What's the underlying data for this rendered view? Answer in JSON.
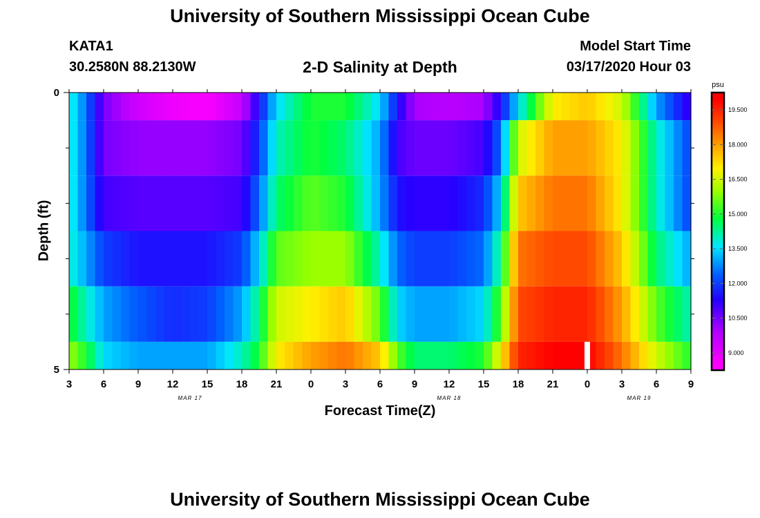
{
  "header": {
    "title": "University of Southern Mississippi Ocean Cube",
    "station_name": "KATA1",
    "station_coords": "30.2580N 88.2130W",
    "plot_title": "2-D Salinity at Depth",
    "model_start_label": "Model Start Time",
    "model_start_value": "03/17/2020 Hour 03"
  },
  "footer": {
    "title": "University of Southern Mississippi Ocean Cube"
  },
  "chart_data": {
    "type": "heatmap",
    "title": "2-D Salinity at Depth",
    "xlabel": "Forecast Time(Z)",
    "ylabel": "Depth (ft)",
    "colorbar_label": "psu",
    "colorbar_range": [
      8.25,
      20.25
    ],
    "colorbar_ticks": [
      "19.500",
      "18.000",
      "16.500",
      "15.000",
      "13.500",
      "12.000",
      "10.500",
      "9.000"
    ],
    "colorbar_tick_values": [
      19.5,
      18.0,
      16.5,
      15.0,
      13.5,
      12.0,
      10.5,
      9.0
    ],
    "colors": {
      "stops": [
        "#ff00ff",
        "#b400ff",
        "#2400ff",
        "#0060ff",
        "#00e6ff",
        "#00ff40",
        "#9cff00",
        "#fff000",
        "#ffa000",
        "#ff4800",
        "#ff0000"
      ],
      "stop_values": [
        8.5,
        9.9,
        11.3,
        12.4,
        13.6,
        14.8,
        16.0,
        17.0,
        18.0,
        19.0,
        20.0
      ],
      "marker": "#ffffff"
    },
    "x_range_hours": [
      0,
      54
    ],
    "x_ticks": [
      "3",
      "6",
      "9",
      "12",
      "15",
      "18",
      "21",
      "0",
      "3",
      "6",
      "9",
      "12",
      "15",
      "18",
      "21",
      "0",
      "3",
      "6",
      "9"
    ],
    "x_tick_hours": [
      0,
      3,
      6,
      9,
      12,
      15,
      18,
      21,
      24,
      27,
      30,
      33,
      36,
      39,
      42,
      45,
      48,
      51,
      54
    ],
    "date_labels": [
      {
        "text": "MAR 17",
        "hour": 10.5
      },
      {
        "text": "MAR 18",
        "hour": 33
      },
      {
        "text": "MAR 19",
        "hour": 49.5
      }
    ],
    "y_range": [
      0,
      5
    ],
    "y_ticks": [
      "0",
      "5"
    ],
    "y_tick_values": [
      0,
      5
    ],
    "y_minor_ticks": [
      1,
      2,
      3,
      4
    ],
    "depth_bands": [
      [
        0,
        0.5
      ],
      [
        0.5,
        1.5
      ],
      [
        1.5,
        2.5
      ],
      [
        2.5,
        3.5
      ],
      [
        3.5,
        4.5
      ],
      [
        4.5,
        5
      ]
    ],
    "salinity_knots_hours": [
      0,
      1.5,
      3,
      6,
      9,
      12,
      15,
      16.5,
      18,
      21,
      24,
      27,
      28.5,
      30,
      33,
      36,
      37.5,
      39,
      42,
      45,
      48,
      51,
      54
    ],
    "salinity_rows": [
      [
        14,
        12.5,
        10.5,
        9.4,
        8.8,
        8.6,
        9.6,
        11.5,
        13.5,
        15.0,
        15.0,
        13.5,
        11.5,
        10.0,
        9.8,
        10.0,
        11.5,
        13.5,
        17.0,
        17.5,
        16.5,
        13.0,
        11.0
      ],
      [
        14,
        12.5,
        10.5,
        10.2,
        10.2,
        10.2,
        10.5,
        12.0,
        14.0,
        15.0,
        14.5,
        13.0,
        11.0,
        10.6,
        10.6,
        11.0,
        12.5,
        16.5,
        18.0,
        18.0,
        17.0,
        14.0,
        12.0
      ],
      [
        14,
        12.5,
        11.0,
        10.8,
        10.8,
        10.8,
        11.0,
        12.5,
        14.5,
        15.5,
        15.0,
        13.0,
        11.5,
        11.2,
        11.2,
        11.8,
        13.5,
        17.5,
        18.5,
        18.5,
        17.0,
        14.0,
        12.0
      ],
      [
        14,
        13.0,
        12.0,
        11.5,
        11.5,
        11.5,
        12.0,
        13.5,
        15.5,
        16.0,
        16.0,
        14.0,
        12.5,
        12.0,
        12.0,
        12.5,
        14.5,
        18.5,
        19.0,
        19.0,
        17.5,
        14.5,
        13.0
      ],
      [
        15,
        14.0,
        13.0,
        12.3,
        11.8,
        12.0,
        13.0,
        14.5,
        16.5,
        17.0,
        17.5,
        15.5,
        13.5,
        13.0,
        13.0,
        13.5,
        15.5,
        19.0,
        19.5,
        19.5,
        18.0,
        15.5,
        14.0
      ],
      [
        16,
        15.0,
        13.5,
        13.0,
        13.0,
        13.0,
        14.0,
        15.0,
        17.0,
        18.0,
        18.5,
        17.5,
        15.5,
        14.5,
        14.5,
        15.0,
        17.0,
        19.5,
        20.0,
        20.0,
        18.5,
        16.5,
        15.0
      ]
    ],
    "now_marker_hour": 45
  }
}
